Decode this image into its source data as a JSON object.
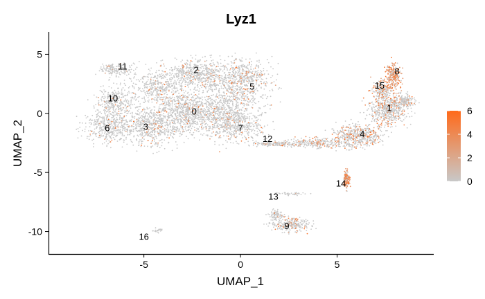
{
  "chart_data": {
    "type": "scatter",
    "title": "Lyz1",
    "xlabel": "UMAP_1",
    "ylabel": "UMAP_2",
    "xlim": [
      -9.9,
      10.0
    ],
    "ylim": [
      -11.9,
      6.9
    ],
    "x_ticks": [
      -5,
      0,
      5
    ],
    "y_ticks": [
      5,
      0,
      -5,
      -10
    ],
    "x_tick_labels": [
      "-5",
      "0",
      "5"
    ],
    "y_tick_labels": [
      "5",
      "0",
      "-5",
      "-10"
    ],
    "grid": false,
    "point_color_low": "#c8c8c8",
    "point_color_high": "#ff6a1a",
    "legend": {
      "placement": "right",
      "range": [
        0,
        6
      ],
      "ticks": [
        0,
        2,
        4,
        6
      ],
      "tick_labels": [
        "0",
        "2",
        "4",
        "6"
      ],
      "color_low": "#c8c8c8",
      "color_high": "#ff6a1a"
    },
    "cluster_labels": [
      {
        "label": "0",
        "x": -2.4,
        "y": 0.1
      },
      {
        "label": "1",
        "x": 7.7,
        "y": 0.4
      },
      {
        "label": "2",
        "x": -2.3,
        "y": 3.6
      },
      {
        "label": "3",
        "x": -4.9,
        "y": -1.2
      },
      {
        "label": "4",
        "x": 6.3,
        "y": -1.8
      },
      {
        "label": "5",
        "x": 0.6,
        "y": 2.2
      },
      {
        "label": "6",
        "x": -6.9,
        "y": -1.3
      },
      {
        "label": "7",
        "x": 0.0,
        "y": -1.3
      },
      {
        "label": "8",
        "x": 8.1,
        "y": 3.5
      },
      {
        "label": "9",
        "x": 2.4,
        "y": -9.6
      },
      {
        "label": "10",
        "x": -6.6,
        "y": 1.2
      },
      {
        "label": "11",
        "x": -6.1,
        "y": 3.9
      },
      {
        "label": "12",
        "x": 1.4,
        "y": -2.2
      },
      {
        "label": "13",
        "x": 1.7,
        "y": -7.1
      },
      {
        "label": "14",
        "x": 5.2,
        "y": -6.0
      },
      {
        "label": "15",
        "x": 7.2,
        "y": 2.3
      },
      {
        "label": "16",
        "x": -5.0,
        "y": -10.5
      }
    ],
    "regions": [
      {
        "cx": -2.4,
        "cy": 0.2,
        "rx": 1.8,
        "ry": 1.5,
        "n": 900,
        "expr": 0.08
      },
      {
        "cx": -2.2,
        "cy": 3.3,
        "rx": 1.9,
        "ry": 1.1,
        "n": 650,
        "expr": 0.1
      },
      {
        "cx": -4.6,
        "cy": -1.0,
        "rx": 1.7,
        "ry": 1.5,
        "n": 700,
        "expr": 0.06
      },
      {
        "cx": 0.2,
        "cy": 2.8,
        "rx": 1.3,
        "ry": 1.6,
        "n": 500,
        "expr": 0.15
      },
      {
        "cx": -0.2,
        "cy": -1.0,
        "rx": 1.3,
        "ry": 1.2,
        "n": 420,
        "expr": 0.07
      },
      {
        "cx": -6.8,
        "cy": -1.1,
        "rx": 1.1,
        "ry": 1.2,
        "n": 380,
        "expr": 0.05
      },
      {
        "cx": -6.5,
        "cy": 1.0,
        "rx": 0.9,
        "ry": 1.2,
        "n": 330,
        "expr": 0.05
      },
      {
        "cx": -0.5,
        "cy": 0.4,
        "rx": 1.4,
        "ry": 2.3,
        "n": 420,
        "expr": 0.09
      },
      {
        "cx": -4.3,
        "cy": 2.2,
        "rx": 1.4,
        "ry": 1.1,
        "n": 340,
        "expr": 0.06
      },
      {
        "cx": -6.4,
        "cy": 3.8,
        "rx": 0.9,
        "ry": 0.5,
        "n": 170,
        "expr": 0.05
      },
      {
        "cx": 1.8,
        "cy": -2.6,
        "rx": 1.1,
        "ry": 0.2,
        "n": 150,
        "expr": 0.12
      },
      {
        "cx": 4.0,
        "cy": -2.5,
        "rx": 1.4,
        "ry": 0.35,
        "n": 240,
        "expr": 0.2
      },
      {
        "cx": 6.1,
        "cy": -1.9,
        "rx": 1.1,
        "ry": 0.9,
        "n": 520,
        "expr": 0.22
      },
      {
        "cx": 7.6,
        "cy": 0.3,
        "rx": 0.9,
        "ry": 1.2,
        "n": 480,
        "expr": 0.25
      },
      {
        "cx": 8.4,
        "cy": 1.0,
        "rx": 0.6,
        "ry": 0.6,
        "n": 200,
        "expr": 0.2
      },
      {
        "cx": 7.3,
        "cy": 2.0,
        "rx": 0.4,
        "ry": 0.8,
        "n": 170,
        "expr": 0.3
      },
      {
        "cx": 7.9,
        "cy": 3.2,
        "rx": 0.35,
        "ry": 1.0,
        "n": 260,
        "expr": 0.75
      },
      {
        "cx": 5.5,
        "cy": -5.6,
        "rx": 0.15,
        "ry": 0.7,
        "n": 150,
        "expr": 0.85
      },
      {
        "cx": 1.8,
        "cy": -8.6,
        "rx": 0.3,
        "ry": 0.4,
        "n": 90,
        "expr": 0.08
      },
      {
        "cx": 2.6,
        "cy": -9.4,
        "rx": 0.9,
        "ry": 0.5,
        "n": 270,
        "expr": 0.15
      },
      {
        "cx": 2.7,
        "cy": -6.8,
        "rx": 0.8,
        "ry": 0.12,
        "n": 40,
        "expr": 0.05
      },
      {
        "cx": -4.3,
        "cy": -9.9,
        "rx": 0.25,
        "ry": 0.2,
        "n": 25,
        "expr": 0.03
      }
    ]
  }
}
